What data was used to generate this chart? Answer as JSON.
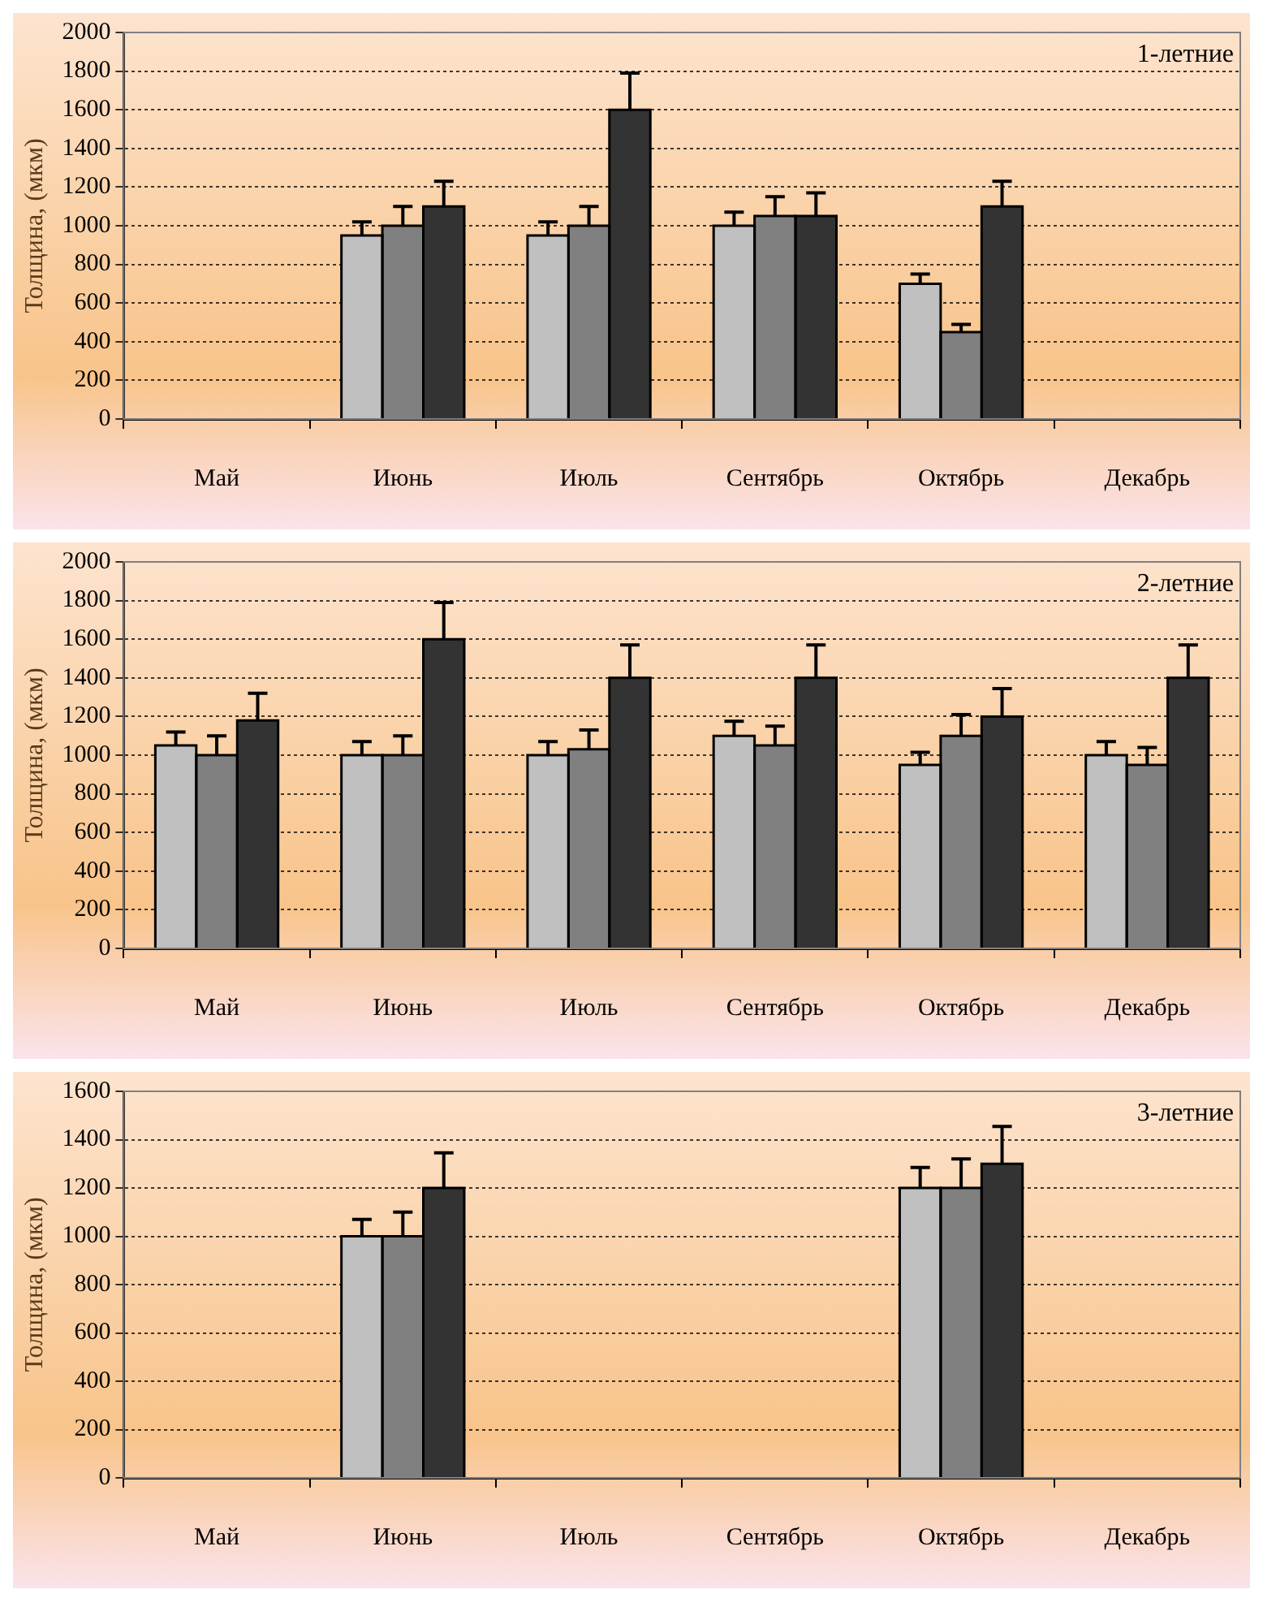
{
  "chart_data": [
    {
      "type": "bar",
      "ylabel": "Толщина, (мкм)",
      "annotations": [
        "1-летние"
      ],
      "categories": [
        "Май",
        "Июнь",
        "Июль",
        "Сентябрь",
        "Октябрь",
        "Декабрь"
      ],
      "ylim": [
        0,
        2000
      ],
      "yticks": [
        0,
        200,
        400,
        600,
        800,
        1000,
        1200,
        1400,
        1600,
        1800,
        2000
      ],
      "grid": "y",
      "legend": false,
      "series": [
        {
          "color": "#c0c0c0",
          "values": [
            null,
            950,
            950,
            1000,
            700,
            null
          ],
          "errors": [
            null,
            70,
            70,
            70,
            50,
            null
          ]
        },
        {
          "color": "#808080",
          "values": [
            null,
            1000,
            1000,
            1050,
            450,
            null
          ],
          "errors": [
            null,
            100,
            100,
            100,
            40,
            null
          ]
        },
        {
          "color": "#333333",
          "values": [
            null,
            1100,
            1600,
            1050,
            1100,
            null
          ],
          "errors": [
            null,
            130,
            190,
            120,
            130,
            null
          ]
        }
      ]
    },
    {
      "type": "bar",
      "ylabel": "Толщина, (мкм)",
      "annotations": [
        "2-летние"
      ],
      "categories": [
        "Май",
        "Июнь",
        "Июль",
        "Сентябрь",
        "Октябрь",
        "Декабрь"
      ],
      "ylim": [
        0,
        2000
      ],
      "yticks": [
        0,
        200,
        400,
        600,
        800,
        1000,
        1200,
        1400,
        1600,
        1800,
        2000
      ],
      "grid": "y",
      "legend": false,
      "series": [
        {
          "color": "#c0c0c0",
          "values": [
            1050,
            1000,
            1000,
            1100,
            950,
            1000
          ],
          "errors": [
            70,
            70,
            70,
            75,
            65,
            70
          ]
        },
        {
          "color": "#808080",
          "values": [
            1000,
            1000,
            1030,
            1050,
            1100,
            950
          ],
          "errors": [
            100,
            100,
            100,
            100,
            110,
            90
          ]
        },
        {
          "color": "#333333",
          "values": [
            1180,
            1600,
            1400,
            1400,
            1200,
            1400
          ],
          "errors": [
            140,
            190,
            170,
            170,
            145,
            170
          ]
        }
      ]
    },
    {
      "type": "bar",
      "ylabel": "Толщина, (мкм)",
      "annotations": [
        "3-летние"
      ],
      "categories": [
        "Май",
        "Июнь",
        "Июль",
        "Сентябрь",
        "Октябрь",
        "Декабрь"
      ],
      "ylim": [
        0,
        1600
      ],
      "yticks": [
        0,
        200,
        400,
        600,
        800,
        1000,
        1200,
        1400,
        1600
      ],
      "grid": "y",
      "legend": false,
      "series": [
        {
          "color": "#c0c0c0",
          "values": [
            null,
            1000,
            null,
            null,
            1200,
            null
          ],
          "errors": [
            null,
            70,
            null,
            null,
            85,
            null
          ]
        },
        {
          "color": "#808080",
          "values": [
            null,
            1000,
            null,
            null,
            1200,
            null
          ],
          "errors": [
            null,
            100,
            null,
            null,
            120,
            null
          ]
        },
        {
          "color": "#333333",
          "values": [
            null,
            1200,
            null,
            null,
            1300,
            null
          ],
          "errors": [
            null,
            145,
            null,
            null,
            155,
            null
          ]
        }
      ]
    }
  ]
}
